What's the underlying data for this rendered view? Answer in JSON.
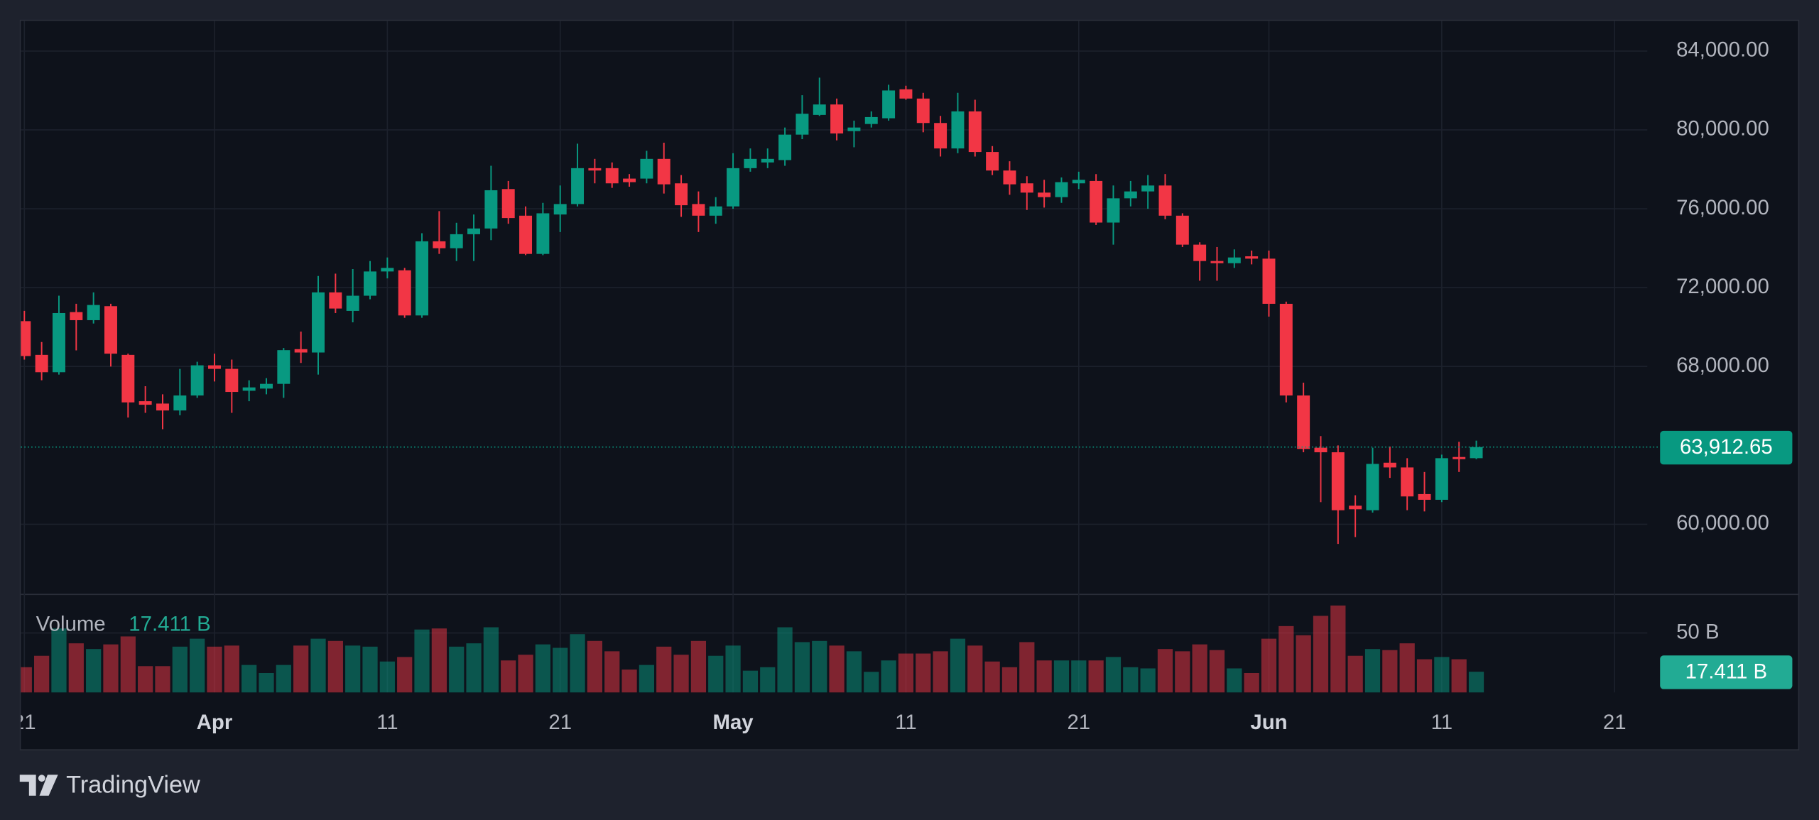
{
  "chart_data": {
    "type": "candlestick",
    "categories": [
      "Mar 21",
      "Mar 22",
      "Mar 23",
      "Mar 24",
      "Mar 25",
      "Mar 26",
      "Mar 27",
      "Mar 28",
      "Mar 29",
      "Mar 30",
      "Mar 31",
      "Apr 1",
      "Apr 2",
      "Apr 3",
      "Apr 4",
      "Apr 5",
      "Apr 6",
      "Apr 7",
      "Apr 8",
      "Apr 9",
      "Apr 10",
      "Apr 11",
      "Apr 12",
      "Apr 13",
      "Apr 14",
      "Apr 15",
      "Apr 16",
      "Apr 17",
      "Apr 18",
      "Apr 19",
      "Apr 20",
      "Apr 21",
      "Apr 22",
      "Apr 23",
      "Apr 24",
      "Apr 25",
      "Apr 26",
      "Apr 27",
      "Apr 28",
      "Apr 29",
      "Apr 30",
      "May 1",
      "May 2",
      "May 3",
      "May 4",
      "May 5",
      "May 6",
      "May 7",
      "May 8",
      "May 9",
      "May 10",
      "May 11",
      "May 12",
      "May 13",
      "May 14",
      "May 15",
      "May 16",
      "May 17",
      "May 18",
      "May 19",
      "May 20",
      "May 21",
      "May 22",
      "May 23",
      "May 24",
      "May 25",
      "May 26",
      "May 27",
      "May 28",
      "May 29",
      "May 30",
      "May 31",
      "Jun 1",
      "Jun 2",
      "Jun 3",
      "Jun 4",
      "Jun 5",
      "Jun 6",
      "Jun 7",
      "Jun 8",
      "Jun 9",
      "Jun 10",
      "Jun 11",
      "Jun 12",
      "Jun 13"
    ],
    "open": [
      70300,
      68590,
      67710,
      70760,
      70350,
      71060,
      68590,
      66240,
      66120,
      65770,
      66530,
      68060,
      67880,
      66770,
      66880,
      67120,
      68880,
      68710,
      71760,
      70820,
      71590,
      72820,
      72880,
      70590,
      74350,
      74000,
      74710,
      75000,
      77000,
      75650,
      73710,
      75710,
      76240,
      78060,
      78060,
      77530,
      77530,
      78530,
      77290,
      76240,
      75650,
      76120,
      78060,
      78350,
      78470,
      79760,
      80760,
      81290,
      79940,
      80300,
      80590,
      82060,
      81590,
      80350,
      79060,
      80940,
      78880,
      77940,
      77290,
      76820,
      76590,
      77290,
      77410,
      75300,
      76530,
      76880,
      77180,
      75650,
      74180,
      73350,
      73240,
      73590,
      73470,
      71180,
      66530,
      63880,
      63650,
      60940,
      60710,
      63120,
      62880,
      61530,
      61240,
      63410,
      63350
    ],
    "high": [
      70820,
      69240,
      71590,
      71180,
      71760,
      71180,
      68650,
      67000,
      66590,
      67880,
      68240,
      68650,
      68350,
      67300,
      67410,
      68940,
      69770,
      72590,
      72710,
      72940,
      73350,
      73530,
      73000,
      74760,
      75880,
      75290,
      75710,
      78180,
      77410,
      76120,
      76300,
      77180,
      79300,
      78530,
      78350,
      77760,
      78940,
      79350,
      77710,
      76880,
      76590,
      78820,
      79060,
      79060,
      80120,
      81760,
      82650,
      81590,
      80470,
      80940,
      82290,
      82240,
      81880,
      80710,
      81880,
      81530,
      79180,
      78410,
      77650,
      77470,
      77590,
      77880,
      77760,
      77180,
      77410,
      77710,
      77760,
      75770,
      74300,
      74060,
      73940,
      73880,
      73880,
      71290,
      67180,
      64470,
      64000,
      61470,
      63880,
      63940,
      63350,
      62650,
      63530,
      64180,
      64240
    ],
    "low": [
      68350,
      67300,
      67590,
      68820,
      70180,
      68000,
      65410,
      65650,
      64820,
      65530,
      66410,
      67240,
      65650,
      66240,
      66590,
      66410,
      68180,
      67590,
      70710,
      70240,
      71410,
      72470,
      70470,
      70470,
      73710,
      73350,
      73350,
      74410,
      75240,
      73650,
      73650,
      74820,
      76120,
      77290,
      77060,
      77120,
      77290,
      76770,
      75590,
      74820,
      75240,
      76000,
      77880,
      78060,
      78180,
      79530,
      80710,
      79470,
      79120,
      80120,
      80470,
      81530,
      79880,
      78650,
      78820,
      78650,
      77710,
      76710,
      75940,
      76060,
      76300,
      77000,
      75180,
      74180,
      76120,
      76000,
      75470,
      74060,
      72350,
      72350,
      73000,
      73180,
      70530,
      66180,
      63650,
      61120,
      59000,
      59350,
      60590,
      62350,
      60710,
      60650,
      61120,
      62650,
      63300
    ],
    "close": [
      68530,
      67710,
      70710,
      70350,
      71120,
      68650,
      66180,
      66060,
      65770,
      66530,
      68060,
      67880,
      66710,
      66940,
      67120,
      68830,
      68710,
      71760,
      70940,
      71590,
      72820,
      73000,
      70590,
      74350,
      74000,
      74710,
      75000,
      76940,
      75530,
      73710,
      75770,
      76240,
      78060,
      77940,
      77290,
      77350,
      78530,
      77240,
      76180,
      75650,
      76120,
      78060,
      78530,
      78530,
      79760,
      80820,
      81290,
      79820,
      80120,
      80650,
      82000,
      81590,
      80350,
      79060,
      80940,
      78880,
      77940,
      77240,
      76820,
      76590,
      77350,
      77470,
      75300,
      76530,
      76880,
      77180,
      75650,
      74180,
      73350,
      73240,
      73530,
      73470,
      71180,
      66530,
      63820,
      63650,
      60710,
      60760,
      63060,
      62880,
      61410,
      61240,
      63350,
      63300,
      63912.65
    ],
    "up_color": "#089981",
    "down_color": "#f23645",
    "ylim": [
      56470,
      85530
    ],
    "yticks": [
      {
        "value": 60000,
        "label": "60,000.00"
      },
      {
        "value": 68000,
        "label": "68,000.00"
      },
      {
        "value": 72000,
        "label": "72,000.00"
      },
      {
        "value": 76000,
        "label": "76,000.00"
      },
      {
        "value": 80000,
        "label": "80,000.00"
      },
      {
        "value": 84000,
        "label": "84,000.00"
      }
    ],
    "xticks": [
      {
        "value": "Mar 21",
        "label": "21"
      },
      {
        "value": "Apr 1",
        "label": "Apr"
      },
      {
        "value": "Apr 11",
        "label": "11"
      },
      {
        "value": "Apr 21",
        "label": "21"
      },
      {
        "value": "May 1",
        "label": "May"
      },
      {
        "value": "May 11",
        "label": "11"
      },
      {
        "value": "May 21",
        "label": "21"
      },
      {
        "value": "Jun 1",
        "label": "Jun"
      },
      {
        "value": "Jun 11",
        "label": "11"
      },
      {
        "value": "Jun 21",
        "label": "21"
      }
    ],
    "grid": true,
    "last_price": {
      "value": 63912.65,
      "label": "63,912.65"
    },
    "volume": {
      "name": "Volume",
      "values": [
        21.2,
        30.8,
        53.8,
        41.3,
        36.5,
        40.4,
        47.1,
        22.1,
        22.1,
        38.5,
        45.2,
        38.5,
        39.4,
        23.1,
        16.3,
        23.1,
        39.4,
        45.2,
        43.3,
        39.4,
        38.5,
        26,
        29.8,
        52.9,
        53.8,
        38.5,
        41.3,
        54.8,
        26.9,
        31.7,
        40.4,
        37.5,
        49,
        43.3,
        34.6,
        19.2,
        23.1,
        38.5,
        31.7,
        43.3,
        30.8,
        39.4,
        18.3,
        21.2,
        54.8,
        42.3,
        43.3,
        39.4,
        34.6,
        17.3,
        26.9,
        32.7,
        32.7,
        34.6,
        45.2,
        39.4,
        26,
        21.2,
        42.3,
        26.9,
        26.9,
        26.9,
        26.9,
        29.8,
        21.2,
        20.2,
        36.5,
        34.6,
        40.4,
        35.6,
        20.2,
        16.3,
        45.2,
        55.8,
        48.1,
        64.4,
        73.1,
        30.8,
        36.5,
        35.6,
        41.3,
        27.9,
        29.8,
        27.9,
        17.411
      ],
      "ylim": [
        0,
        80
      ],
      "yticks": [
        {
          "value": 50,
          "label": "50 B"
        }
      ],
      "last": {
        "value": 17.411,
        "label": "17.411 B"
      },
      "color": "#22ab94"
    }
  },
  "footer": {
    "brand": "TradingView"
  }
}
